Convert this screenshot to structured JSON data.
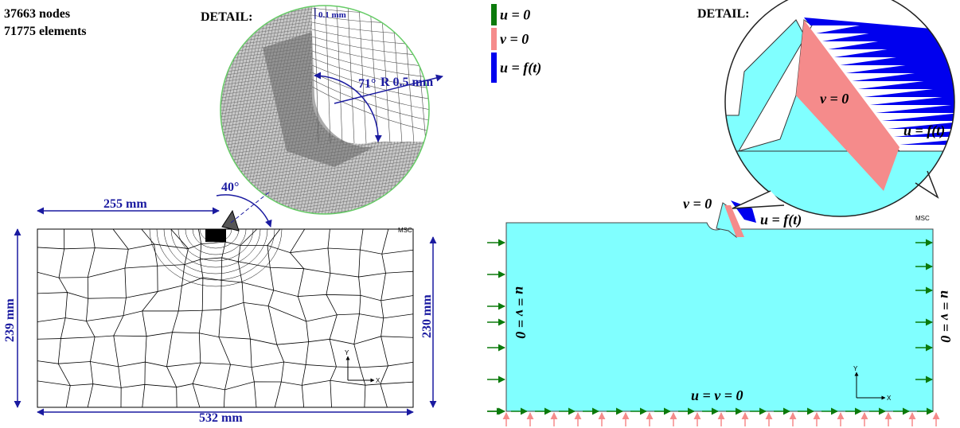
{
  "left_panel": {
    "stats": [
      "37663 nodes",
      "71775 elements"
    ],
    "detail_label": "DETAIL:",
    "detail_dims": {
      "thickness": "0.1 mm",
      "angle": "71°",
      "radius": "R 0.5 mm"
    },
    "tool_angle": "40°",
    "dims": {
      "top": "255 mm",
      "left": "239 mm",
      "right": "230 mm",
      "bottom": "532 mm"
    },
    "logo": "MSC",
    "axes": [
      "Y",
      "X"
    ]
  },
  "right_panel": {
    "legend": [
      {
        "label": "u = 0",
        "color": "#0b7a0b"
      },
      {
        "label": "v = 0",
        "color": "#f58b8b"
      },
      {
        "label": "u = f(t)",
        "color": "#0000ee"
      }
    ],
    "detail_label": "DETAIL:",
    "detail_labels": [
      "v = 0",
      "u = f(t)"
    ],
    "tool_labels": [
      "v = 0",
      "u = f(t)"
    ],
    "bc_labels": {
      "left": "u = v = 0",
      "bottom": "u = v = 0",
      "right": "u = v = 0"
    },
    "logo": "MSC",
    "axes": [
      "Y",
      "X"
    ]
  }
}
